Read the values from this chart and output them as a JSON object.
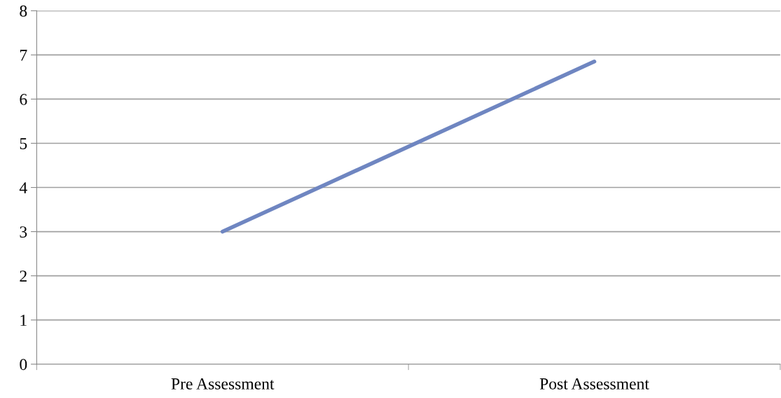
{
  "chart_data": {
    "type": "line",
    "categories": [
      "Pre Assessment",
      "Post Assessment"
    ],
    "series": [
      {
        "color": "#6f86c1",
        "values": [
          3,
          6.85
        ]
      }
    ],
    "ylim": [
      0,
      8
    ],
    "yticks": [
      0,
      1,
      2,
      3,
      4,
      5,
      6,
      7,
      8
    ],
    "grid": "y",
    "marker": "none",
    "line_style": "solid"
  }
}
